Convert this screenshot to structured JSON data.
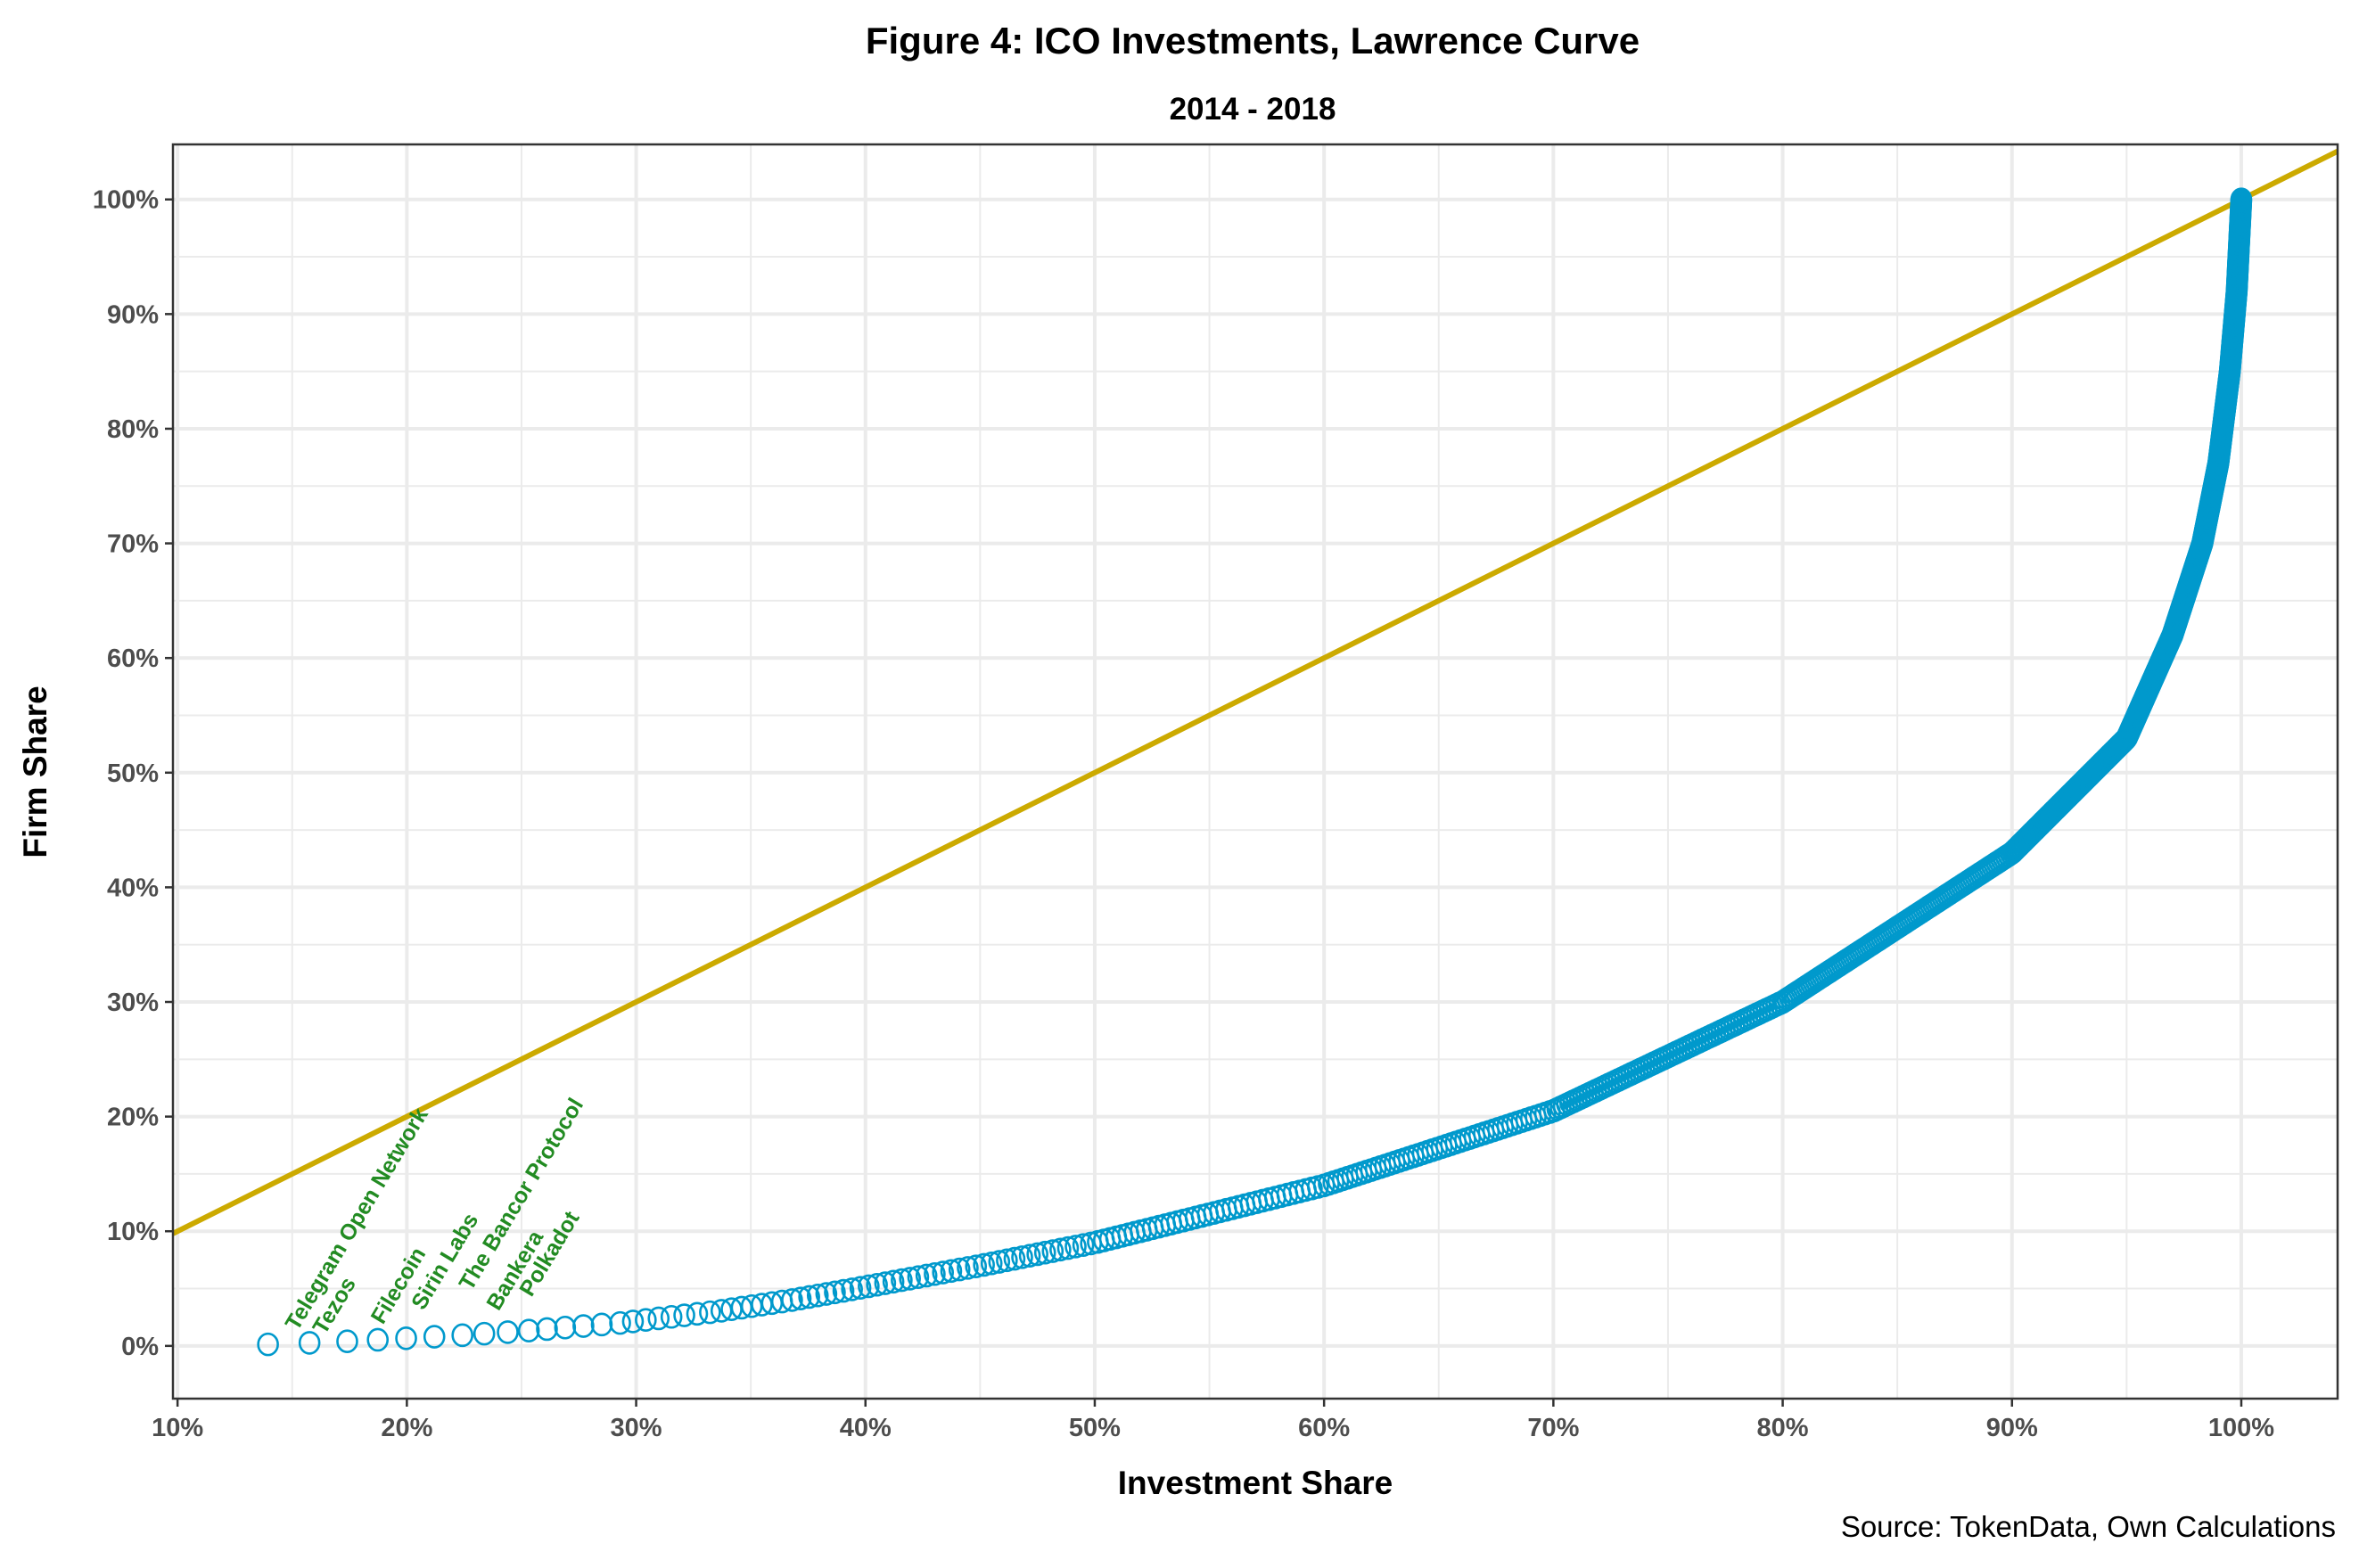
{
  "chart_data": {
    "type": "scatter",
    "title": "Figure 4: ICO Investments, Lawrence Curve",
    "subtitle": "2014 - 2018",
    "xlabel": "Investment Share",
    "ylabel": "Firm Share",
    "caption": "Source: TokenData, Own Calculations",
    "xlim": [
      9.8,
      104.2
    ],
    "ylim": [
      -4.6,
      104.8
    ],
    "x_ticks": [
      "10%",
      "20%",
      "30%",
      "40%",
      "50%",
      "60%",
      "70%",
      "80%",
      "90%",
      "100%"
    ],
    "x_tick_values": [
      10,
      20,
      30,
      40,
      50,
      60,
      70,
      80,
      90,
      100
    ],
    "y_ticks": [
      "0%",
      "10%",
      "20%",
      "30%",
      "40%",
      "50%",
      "60%",
      "70%",
      "80%",
      "90%",
      "100%"
    ],
    "y_tick_values": [
      0,
      10,
      20,
      30,
      40,
      50,
      60,
      70,
      80,
      90,
      100
    ],
    "grid": true,
    "colors": {
      "points": "#0099cc",
      "equality_line": "#ccaa00",
      "labels": "#228b22",
      "grid": "#ebebeb"
    },
    "n_firms": 750,
    "equality_line": {
      "slope": 1,
      "intercept": 0
    },
    "curve_anchors_firm_vs_investment": [
      [
        0.13,
        13.9
      ],
      [
        0.27,
        15.8
      ],
      [
        0.4,
        17.4
      ],
      [
        0.53,
        18.7
      ],
      [
        0.67,
        20.0
      ],
      [
        0.8,
        21.2
      ],
      [
        0.93,
        22.4
      ],
      [
        1.07,
        23.4
      ],
      [
        1.2,
        24.4
      ],
      [
        1.33,
        25.3
      ],
      [
        1.6,
        26.9
      ],
      [
        2,
        29.3
      ],
      [
        3,
        33.5
      ],
      [
        4,
        36.8
      ],
      [
        5,
        39.6
      ],
      [
        7,
        45
      ],
      [
        9,
        50
      ],
      [
        14,
        60
      ],
      [
        20.5,
        70
      ],
      [
        30,
        80
      ],
      [
        43,
        90
      ],
      [
        53,
        95
      ],
      [
        62,
        97
      ],
      [
        70,
        98.3
      ],
      [
        77,
        99
      ],
      [
        85,
        99.5
      ],
      [
        92,
        99.8
      ],
      [
        100,
        100
      ]
    ],
    "labeled_points": [
      {
        "label": "Telegram Open Network",
        "x": 13.9,
        "y": 0.13
      },
      {
        "label": "Tezos",
        "x": 15.8,
        "y": 0.27
      },
      {
        "label": "Filecoin",
        "x": 17.4,
        "y": 0.4
      },
      {
        "label": "Sirin Labs",
        "x": 18.7,
        "y": 0.53
      },
      {
        "label": "The Bancor Protocol",
        "x": 20.0,
        "y": 0.67
      },
      {
        "label": "Bankera",
        "x": 21.2,
        "y": 0.8
      },
      {
        "label": "Polkadot",
        "x": 22.4,
        "y": 0.93
      }
    ]
  }
}
